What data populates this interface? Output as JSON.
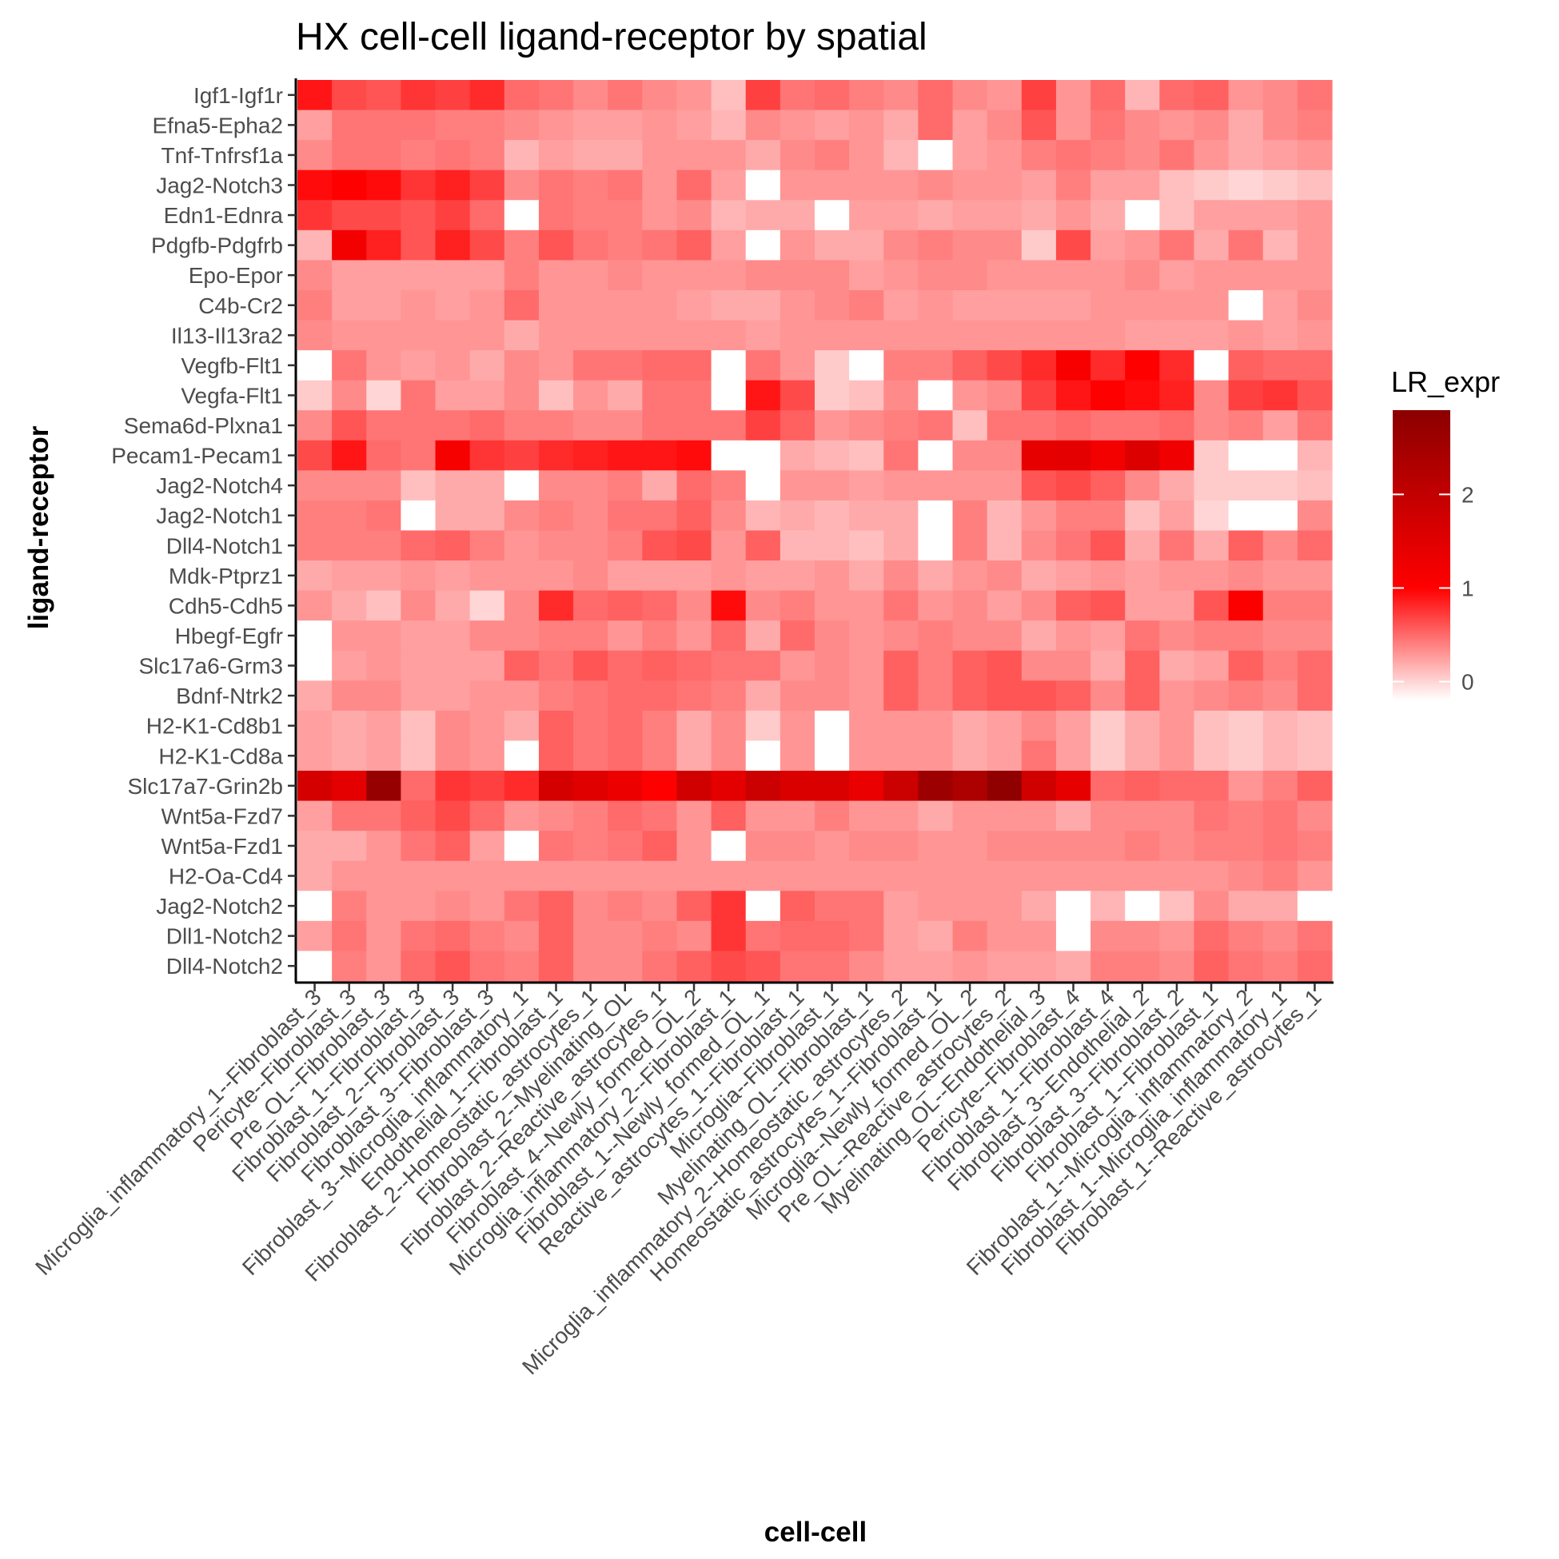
{
  "chart_data": {
    "type": "heatmap",
    "title": "HX cell-cell ligand-receptor by spatial",
    "xlabel": "cell-cell",
    "ylabel": "ligand-receptor",
    "legend": {
      "title": "LR_expr",
      "ticks": [
        0,
        1,
        2
      ],
      "range": [
        -0.2,
        2.9
      ],
      "colors": [
        "#ffffff",
        "#ff0000",
        "#8b0000"
      ],
      "position": "right"
    },
    "rows": [
      "Igf1-Igf1r",
      "Efna5-Epha2",
      "Tnf-Tnfrsf1a",
      "Jag2-Notch3",
      "Edn1-Ednra",
      "Pdgfb-Pdgfrb",
      "Epo-Epor",
      "C4b-Cr2",
      "Il13-Il13ra2",
      "Vegfb-Flt1",
      "Vegfa-Flt1",
      "Sema6d-Plxna1",
      "Pecam1-Pecam1",
      "Jag2-Notch4",
      "Jag2-Notch1",
      "Dll4-Notch1",
      "Mdk-Ptprz1",
      "Cdh5-Cdh5",
      "Hbegf-Egfr",
      "Slc17a6-Grm3",
      "Bdnf-Ntrk2",
      "H2-K1-Cd8b1",
      "H2-K1-Cd8a",
      "Slc17a7-Grin2b",
      "Wnt5a-Fzd7",
      "Wnt5a-Fzd1",
      "H2-Oa-Cd4",
      "Jag2-Notch2",
      "Dll1-Notch2",
      "Dll4-Notch2"
    ],
    "columns": [
      "Microglia_inflammatory_1--Fibroblast_3",
      "Pericyte--Fibroblast_3",
      "Pre_OL--Fibroblast_3",
      "Fibroblast_1--Fibroblast_3",
      "Fibroblast_2--Fibroblast_3",
      "Fibroblast_3--Fibroblast_3",
      "Fibroblast_3--Microglia_inflammatory_1",
      "Endothelial_1--Fibroblast_1",
      "Fibroblast_2--Homeostatic_astrocytes_1",
      "Fibroblast_2--Myelinating_OL",
      "Fibroblast_2--Reactive_astrocytes_1",
      "Fibroblast_4--Newly_formed_OL_2",
      "Microglia_inflammatory_2--Fibroblast_1",
      "Fibroblast_1--Newly_formed_OL_1",
      "Reactive_astrocytes_1--Fibroblast_1",
      "Microglia--Fibroblast_1",
      "Myelinating_OL--Fibroblast_1",
      "Microglia_inflammatory_2--Homeostatic_astrocytes_2",
      "Homeostatic_astrocytes_1--Fibroblast_1",
      "Microglia--Newly_formed_OL_2",
      "Pre_OL--Reactive_astrocytes_2",
      "Myelinating_OL--Endothelial_3",
      "Pericyte--Fibroblast_4",
      "Fibroblast_1--Fibroblast_4",
      "Fibroblast_3--Endothelial_2",
      "Fibroblast_3--Fibroblast_2",
      "Fibroblast_1--Fibroblast_1",
      "Fibroblast_1--Microglia_inflammatory_2",
      "Fibroblast_1--Microglia_inflammatory_1",
      "Fibroblast_1--Reactive_astrocytes_1"
    ],
    "values": [
      [
        0.9,
        0.65,
        0.6,
        0.75,
        0.7,
        0.8,
        0.5,
        0.45,
        0.35,
        0.45,
        0.35,
        0.3,
        0.1,
        0.7,
        0.45,
        0.5,
        0.4,
        0.35,
        0.5,
        0.35,
        0.3,
        0.7,
        0.3,
        0.5,
        0.15,
        0.5,
        0.55,
        0.3,
        0.35,
        0.45
      ],
      [
        0.25,
        0.45,
        0.45,
        0.45,
        0.4,
        0.4,
        0.35,
        0.3,
        0.25,
        0.25,
        0.3,
        0.25,
        0.15,
        0.35,
        0.3,
        0.25,
        0.3,
        0.2,
        0.5,
        0.25,
        0.35,
        0.6,
        0.3,
        0.45,
        0.35,
        0.3,
        0.35,
        0.2,
        0.35,
        0.4
      ],
      [
        0.35,
        0.45,
        0.45,
        0.4,
        0.45,
        0.4,
        0.15,
        0.25,
        0.2,
        0.2,
        0.3,
        0.3,
        0.3,
        0.2,
        0.35,
        0.4,
        0.3,
        0.15,
        -0.2,
        0.25,
        0.3,
        0.4,
        0.45,
        0.4,
        0.35,
        0.45,
        0.3,
        0.2,
        0.25,
        0.3
      ],
      [
        0.95,
        1.0,
        0.95,
        0.75,
        0.85,
        0.7,
        0.35,
        0.45,
        0.4,
        0.45,
        0.3,
        0.5,
        0.25,
        -0.2,
        0.3,
        0.3,
        0.3,
        0.3,
        0.35,
        0.3,
        0.3,
        0.25,
        0.4,
        0.25,
        0.25,
        0.1,
        0.05,
        0.0,
        0.05,
        0.1
      ],
      [
        0.75,
        0.65,
        0.65,
        0.6,
        0.7,
        0.5,
        -0.2,
        0.45,
        0.4,
        0.4,
        0.3,
        0.35,
        0.15,
        0.2,
        0.2,
        -0.2,
        0.25,
        0.25,
        0.2,
        0.25,
        0.25,
        0.2,
        0.3,
        0.2,
        -0.2,
        0.1,
        0.25,
        0.25,
        0.25,
        0.3
      ],
      [
        0.15,
        1.2,
        0.85,
        0.6,
        0.85,
        0.65,
        0.4,
        0.6,
        0.45,
        0.4,
        0.45,
        0.55,
        0.25,
        -0.2,
        0.3,
        0.2,
        0.2,
        0.35,
        0.4,
        0.35,
        0.35,
        0.05,
        0.65,
        0.25,
        0.3,
        0.45,
        0.2,
        0.45,
        0.15,
        0.3
      ],
      [
        0.35,
        0.25,
        0.25,
        0.25,
        0.25,
        0.25,
        0.4,
        0.3,
        0.3,
        0.35,
        0.3,
        0.3,
        0.3,
        0.35,
        0.35,
        0.35,
        0.25,
        0.3,
        0.35,
        0.35,
        0.3,
        0.3,
        0.3,
        0.3,
        0.35,
        0.25,
        0.3,
        0.3,
        0.3,
        0.3
      ],
      [
        0.4,
        0.25,
        0.25,
        0.3,
        0.25,
        0.3,
        0.5,
        0.3,
        0.3,
        0.3,
        0.3,
        0.25,
        0.2,
        0.2,
        0.3,
        0.35,
        0.4,
        0.25,
        0.3,
        0.25,
        0.25,
        0.25,
        0.25,
        0.3,
        0.3,
        0.3,
        0.3,
        -0.2,
        0.25,
        0.35
      ],
      [
        0.35,
        0.3,
        0.3,
        0.3,
        0.3,
        0.3,
        0.2,
        0.3,
        0.3,
        0.3,
        0.3,
        0.3,
        0.3,
        0.25,
        0.3,
        0.3,
        0.3,
        0.3,
        0.3,
        0.3,
        0.3,
        0.3,
        0.3,
        0.3,
        0.25,
        0.25,
        0.25,
        0.3,
        0.25,
        0.3
      ],
      [
        -0.2,
        0.45,
        0.3,
        0.25,
        0.3,
        0.2,
        0.35,
        0.3,
        0.45,
        0.45,
        0.5,
        0.5,
        -0.2,
        0.45,
        0.3,
        0.05,
        -0.2,
        0.4,
        0.4,
        0.55,
        0.65,
        0.8,
        1.1,
        0.8,
        1.0,
        0.8,
        -0.2,
        0.55,
        0.5,
        0.5
      ],
      [
        0.05,
        0.35,
        0.0,
        0.45,
        0.25,
        0.25,
        0.35,
        0.1,
        0.3,
        0.2,
        0.45,
        0.45,
        -0.2,
        0.9,
        0.65,
        0.05,
        0.1,
        0.35,
        -0.2,
        0.3,
        0.35,
        0.7,
        0.9,
        1.0,
        0.95,
        0.85,
        0.35,
        0.7,
        0.75,
        0.6
      ],
      [
        0.35,
        0.6,
        0.45,
        0.45,
        0.45,
        0.5,
        0.4,
        0.4,
        0.35,
        0.35,
        0.45,
        0.45,
        0.45,
        0.7,
        0.55,
        0.3,
        0.35,
        0.4,
        0.45,
        0.1,
        0.45,
        0.45,
        0.5,
        0.45,
        0.45,
        0.5,
        0.35,
        0.4,
        0.25,
        0.45
      ],
      [
        0.65,
        0.9,
        0.5,
        0.45,
        1.15,
        0.75,
        0.7,
        0.8,
        0.85,
        0.9,
        0.9,
        0.95,
        -0.2,
        -0.2,
        0.2,
        0.15,
        0.1,
        0.45,
        -0.2,
        0.35,
        0.35,
        1.4,
        1.45,
        1.2,
        1.55,
        1.25,
        0.05,
        -0.2,
        -0.2,
        0.15
      ],
      [
        0.35,
        0.35,
        0.35,
        0.1,
        0.2,
        0.2,
        -0.2,
        0.35,
        0.35,
        0.4,
        0.2,
        0.5,
        0.4,
        -0.2,
        0.3,
        0.3,
        0.25,
        0.3,
        0.3,
        0.3,
        0.3,
        0.6,
        0.65,
        0.55,
        0.35,
        0.2,
        0.05,
        0.05,
        0.05,
        0.1
      ],
      [
        0.4,
        0.4,
        0.45,
        -0.2,
        0.2,
        0.2,
        0.35,
        0.4,
        0.35,
        0.45,
        0.45,
        0.55,
        0.35,
        0.15,
        0.2,
        0.15,
        0.2,
        0.2,
        -0.2,
        0.4,
        0.15,
        0.3,
        0.4,
        0.4,
        0.1,
        0.25,
        0.0,
        -0.2,
        -0.2,
        0.35
      ],
      [
        0.4,
        0.4,
        0.4,
        0.5,
        0.55,
        0.4,
        0.3,
        0.35,
        0.35,
        0.4,
        0.6,
        0.65,
        0.3,
        0.55,
        0.15,
        0.15,
        0.1,
        0.2,
        -0.2,
        0.4,
        0.15,
        0.35,
        0.45,
        0.6,
        0.2,
        0.45,
        0.2,
        0.55,
        0.35,
        0.5
      ],
      [
        0.2,
        0.25,
        0.25,
        0.3,
        0.25,
        0.3,
        0.3,
        0.3,
        0.35,
        0.25,
        0.25,
        0.25,
        0.3,
        0.25,
        0.25,
        0.3,
        0.2,
        0.35,
        0.2,
        0.3,
        0.35,
        0.2,
        0.25,
        0.3,
        0.25,
        0.3,
        0.3,
        0.35,
        0.3,
        0.3
      ],
      [
        0.3,
        0.2,
        0.1,
        0.35,
        0.2,
        0.0,
        0.35,
        0.8,
        0.5,
        0.55,
        0.5,
        0.35,
        0.95,
        0.35,
        0.4,
        0.3,
        0.3,
        0.45,
        0.3,
        0.35,
        0.25,
        0.35,
        0.55,
        0.6,
        0.25,
        0.25,
        0.6,
        1.05,
        0.4,
        0.4
      ],
      [
        -0.2,
        0.3,
        0.3,
        0.25,
        0.25,
        0.35,
        0.35,
        0.4,
        0.4,
        0.3,
        0.4,
        0.3,
        0.5,
        0.2,
        0.5,
        0.35,
        0.3,
        0.35,
        0.4,
        0.35,
        0.35,
        0.2,
        0.3,
        0.25,
        0.45,
        0.35,
        0.4,
        0.4,
        0.35,
        0.35
      ],
      [
        -0.2,
        0.25,
        0.3,
        0.25,
        0.25,
        0.25,
        0.55,
        0.45,
        0.6,
        0.5,
        0.55,
        0.5,
        0.45,
        0.45,
        0.3,
        0.35,
        0.3,
        0.55,
        0.4,
        0.55,
        0.6,
        0.35,
        0.35,
        0.2,
        0.55,
        0.2,
        0.25,
        0.55,
        0.4,
        0.5
      ],
      [
        0.2,
        0.35,
        0.35,
        0.25,
        0.25,
        0.3,
        0.3,
        0.4,
        0.45,
        0.5,
        0.5,
        0.45,
        0.4,
        0.2,
        0.35,
        0.35,
        0.3,
        0.55,
        0.4,
        0.55,
        0.6,
        0.6,
        0.55,
        0.35,
        0.55,
        0.3,
        0.35,
        0.4,
        0.35,
        0.5
      ],
      [
        0.25,
        0.2,
        0.25,
        0.1,
        0.35,
        0.3,
        0.2,
        0.55,
        0.45,
        0.5,
        0.4,
        0.2,
        0.35,
        0.05,
        0.3,
        -0.2,
        0.3,
        0.3,
        0.3,
        0.2,
        0.25,
        0.35,
        0.25,
        0.05,
        0.2,
        0.3,
        0.1,
        0.05,
        0.15,
        0.1
      ],
      [
        0.25,
        0.2,
        0.25,
        0.1,
        0.35,
        0.3,
        -0.2,
        0.55,
        0.45,
        0.5,
        0.4,
        0.2,
        0.35,
        -0.2,
        0.3,
        -0.2,
        0.3,
        0.3,
        0.3,
        0.2,
        0.25,
        0.45,
        0.25,
        0.05,
        0.2,
        0.3,
        0.1,
        0.05,
        0.15,
        0.1
      ],
      [
        1.7,
        1.45,
        2.7,
        0.5,
        0.75,
        0.7,
        0.8,
        1.7,
        1.5,
        1.3,
        1.0,
        1.75,
        1.45,
        1.85,
        1.6,
        1.6,
        1.35,
        1.85,
        2.6,
        2.35,
        2.8,
        1.75,
        1.4,
        0.5,
        0.55,
        0.5,
        0.5,
        0.3,
        0.4,
        0.55
      ],
      [
        0.25,
        0.45,
        0.45,
        0.55,
        0.65,
        0.5,
        0.3,
        0.35,
        0.4,
        0.5,
        0.45,
        0.3,
        0.55,
        0.3,
        0.3,
        0.4,
        0.3,
        0.3,
        0.2,
        0.3,
        0.3,
        0.3,
        0.2,
        0.35,
        0.35,
        0.35,
        0.45,
        0.4,
        0.45,
        0.35
      ],
      [
        0.2,
        0.2,
        0.3,
        0.45,
        0.55,
        0.25,
        -0.2,
        0.45,
        0.4,
        0.45,
        0.55,
        0.3,
        -0.2,
        0.35,
        0.35,
        0.3,
        0.35,
        0.35,
        0.3,
        0.3,
        0.35,
        0.35,
        0.35,
        0.35,
        0.4,
        0.35,
        0.4,
        0.4,
        0.45,
        0.4
      ],
      [
        0.2,
        0.3,
        0.3,
        0.3,
        0.3,
        0.3,
        0.3,
        0.3,
        0.3,
        0.3,
        0.3,
        0.3,
        0.3,
        0.3,
        0.3,
        0.3,
        0.3,
        0.3,
        0.3,
        0.3,
        0.3,
        0.3,
        0.3,
        0.3,
        0.3,
        0.3,
        0.3,
        0.35,
        0.4,
        0.3
      ],
      [
        -0.2,
        0.4,
        0.3,
        0.3,
        0.35,
        0.3,
        0.45,
        0.55,
        0.35,
        0.4,
        0.35,
        0.55,
        0.75,
        -0.2,
        0.55,
        0.45,
        0.45,
        0.25,
        0.3,
        0.3,
        0.3,
        0.2,
        -0.2,
        0.15,
        -0.2,
        0.1,
        0.35,
        0.2,
        0.2,
        -0.2
      ],
      [
        0.25,
        0.45,
        0.3,
        0.45,
        0.5,
        0.4,
        0.35,
        0.55,
        0.35,
        0.35,
        0.4,
        0.35,
        0.75,
        0.45,
        0.5,
        0.5,
        0.45,
        0.25,
        0.2,
        0.4,
        0.3,
        0.3,
        -0.2,
        0.35,
        0.35,
        0.3,
        0.5,
        0.4,
        0.35,
        0.45
      ],
      [
        -0.2,
        0.4,
        0.3,
        0.5,
        0.6,
        0.45,
        0.4,
        0.55,
        0.35,
        0.35,
        0.45,
        0.55,
        0.65,
        0.6,
        0.45,
        0.45,
        0.35,
        0.25,
        0.25,
        0.3,
        0.25,
        0.25,
        0.2,
        0.4,
        0.4,
        0.35,
        0.55,
        0.45,
        0.4,
        0.5
      ]
    ]
  }
}
